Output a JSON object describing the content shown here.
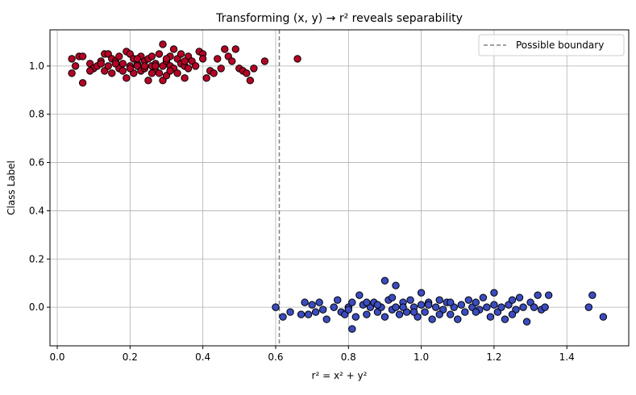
{
  "chart_data": {
    "type": "scatter",
    "title": "Transforming (x, y) → r² reveals separability",
    "xlabel": "r² = x² + y²",
    "ylabel": "Class Label",
    "xlim": [
      -0.02,
      1.57
    ],
    "ylim": [
      -0.16,
      1.15
    ],
    "xticks": [
      0.0,
      0.2,
      0.4,
      0.6,
      0.8,
      1.0,
      1.2,
      1.4
    ],
    "xtick_labels": [
      "0.0",
      "0.2",
      "0.4",
      "0.6",
      "0.8",
      "1.0",
      "1.2",
      "1.4"
    ],
    "yticks": [
      0.0,
      0.2,
      0.4,
      0.6,
      0.8,
      1.0
    ],
    "ytick_labels": [
      "0.0",
      "0.2",
      "0.4",
      "0.6",
      "0.8",
      "1.0"
    ],
    "grid": true,
    "legend": {
      "position": "top-right",
      "entries": [
        "Possible boundary"
      ]
    },
    "boundary": {
      "x": 0.61,
      "style": "dashed",
      "color": "#808080"
    },
    "series": [
      {
        "color": "#b40426",
        "points": [
          [
            0.04,
            1.03
          ],
          [
            0.04,
            0.97
          ],
          [
            0.05,
            1.0
          ],
          [
            0.06,
            1.04
          ],
          [
            0.07,
            1.04
          ],
          [
            0.07,
            0.93
          ],
          [
            0.09,
            1.01
          ],
          [
            0.1,
            0.99
          ],
          [
            0.11,
            1.0
          ],
          [
            0.12,
            1.02
          ],
          [
            0.13,
            0.98
          ],
          [
            0.13,
            1.05
          ],
          [
            0.14,
            1.0
          ],
          [
            0.14,
            1.05
          ],
          [
            0.15,
            0.97
          ],
          [
            0.15,
            1.03
          ],
          [
            0.16,
            1.02
          ],
          [
            0.17,
            0.99
          ],
          [
            0.17,
            1.04
          ],
          [
            0.18,
            0.98
          ],
          [
            0.18,
            1.01
          ],
          [
            0.19,
            1.06
          ],
          [
            0.19,
            0.95
          ],
          [
            0.2,
            1.05
          ],
          [
            0.2,
            1.0
          ],
          [
            0.21,
            1.03
          ],
          [
            0.21,
            0.97
          ],
          [
            0.22,
            1.01
          ],
          [
            0.22,
            1.0
          ],
          [
            0.23,
            0.98
          ],
          [
            0.23,
            1.04
          ],
          [
            0.24,
            1.02
          ],
          [
            0.24,
            0.99
          ],
          [
            0.25,
            0.94
          ],
          [
            0.25,
            1.03
          ],
          [
            0.26,
            1.0
          ],
          [
            0.26,
            1.04
          ],
          [
            0.27,
            0.98
          ],
          [
            0.27,
            1.01
          ],
          [
            0.28,
            1.05
          ],
          [
            0.28,
            0.97
          ],
          [
            0.29,
            1.09
          ],
          [
            0.29,
            1.0
          ],
          [
            0.29,
            0.94
          ],
          [
            0.3,
            1.02
          ],
          [
            0.3,
            0.96
          ],
          [
            0.31,
            1.0
          ],
          [
            0.31,
            1.04
          ],
          [
            0.32,
            0.99
          ],
          [
            0.32,
            1.07
          ],
          [
            0.33,
            1.03
          ],
          [
            0.33,
            0.97
          ],
          [
            0.34,
            1.05
          ],
          [
            0.34,
            1.01
          ],
          [
            0.35,
            0.95
          ],
          [
            0.35,
            1.0
          ],
          [
            0.36,
            1.04
          ],
          [
            0.36,
            0.99
          ],
          [
            0.37,
            1.02
          ],
          [
            0.38,
            1.0
          ],
          [
            0.39,
            1.06
          ],
          [
            0.4,
            1.05
          ],
          [
            0.4,
            1.03
          ],
          [
            0.41,
            0.95
          ],
          [
            0.42,
            0.98
          ],
          [
            0.43,
            0.97
          ],
          [
            0.44,
            1.03
          ],
          [
            0.45,
            0.99
          ],
          [
            0.46,
            1.07
          ],
          [
            0.47,
            1.04
          ],
          [
            0.48,
            1.02
          ],
          [
            0.49,
            1.07
          ],
          [
            0.5,
            0.99
          ],
          [
            0.51,
            0.98
          ],
          [
            0.52,
            0.97
          ],
          [
            0.53,
            0.94
          ],
          [
            0.54,
            0.99
          ],
          [
            0.57,
            1.02
          ],
          [
            0.66,
            1.03
          ],
          [
            0.24,
            1.0
          ],
          [
            0.27,
            1.0
          ],
          [
            0.2,
            0.99
          ],
          [
            0.16,
            1.01
          ],
          [
            0.31,
            0.98
          ],
          [
            0.12,
            1.01
          ],
          [
            0.09,
            0.98
          ],
          [
            0.35,
            1.02
          ],
          [
            0.26,
            0.97
          ],
          [
            0.22,
            1.03
          ],
          [
            0.3,
            1.03
          ]
        ]
      },
      {
        "color": "#3b4cc0",
        "points": [
          [
            0.6,
            0.0
          ],
          [
            0.62,
            -0.04
          ],
          [
            0.64,
            -0.02
          ],
          [
            0.67,
            -0.03
          ],
          [
            0.68,
            0.02
          ],
          [
            0.69,
            -0.03
          ],
          [
            0.7,
            0.01
          ],
          [
            0.71,
            -0.02
          ],
          [
            0.72,
            0.02
          ],
          [
            0.73,
            -0.01
          ],
          [
            0.74,
            -0.05
          ],
          [
            0.76,
            0.0
          ],
          [
            0.77,
            0.03
          ],
          [
            0.78,
            -0.02
          ],
          [
            0.79,
            -0.03
          ],
          [
            0.8,
            0.0
          ],
          [
            0.81,
            -0.09
          ],
          [
            0.81,
            0.02
          ],
          [
            0.82,
            -0.04
          ],
          [
            0.83,
            0.05
          ],
          [
            0.84,
            0.01
          ],
          [
            0.85,
            -0.03
          ],
          [
            0.86,
            0.0
          ],
          [
            0.87,
            0.02
          ],
          [
            0.88,
            -0.02
          ],
          [
            0.89,
            0.0
          ],
          [
            0.9,
            0.11
          ],
          [
            0.9,
            -0.04
          ],
          [
            0.91,
            0.03
          ],
          [
            0.92,
            -0.01
          ],
          [
            0.93,
            0.09
          ],
          [
            0.93,
            0.0
          ],
          [
            0.94,
            -0.03
          ],
          [
            0.95,
            0.02
          ],
          [
            0.96,
            -0.02
          ],
          [
            0.97,
            0.03
          ],
          [
            0.98,
            0.0
          ],
          [
            0.99,
            -0.04
          ],
          [
            1.0,
            0.06
          ],
          [
            1.0,
            0.01
          ],
          [
            1.01,
            -0.02
          ],
          [
            1.02,
            0.02
          ],
          [
            1.03,
            -0.05
          ],
          [
            1.04,
            0.0
          ],
          [
            1.05,
            0.03
          ],
          [
            1.06,
            -0.01
          ],
          [
            1.07,
            0.02
          ],
          [
            1.08,
            -0.03
          ],
          [
            1.09,
            0.0
          ],
          [
            1.1,
            -0.05
          ],
          [
            1.11,
            0.01
          ],
          [
            1.12,
            -0.02
          ],
          [
            1.13,
            0.03
          ],
          [
            1.14,
            0.0
          ],
          [
            1.15,
            0.02
          ],
          [
            1.16,
            -0.01
          ],
          [
            1.17,
            0.04
          ],
          [
            1.18,
            0.0
          ],
          [
            1.19,
            -0.04
          ],
          [
            1.2,
            0.06
          ],
          [
            1.2,
            0.01
          ],
          [
            1.21,
            -0.02
          ],
          [
            1.22,
            0.0
          ],
          [
            1.23,
            -0.05
          ],
          [
            1.24,
            0.01
          ],
          [
            1.25,
            0.03
          ],
          [
            1.26,
            -0.01
          ],
          [
            1.27,
            0.04
          ],
          [
            1.28,
            0.0
          ],
          [
            1.29,
            -0.06
          ],
          [
            1.3,
            0.02
          ],
          [
            1.31,
            0.0
          ],
          [
            1.32,
            0.05
          ],
          [
            1.33,
            -0.01
          ],
          [
            1.34,
            0.0
          ],
          [
            1.35,
            0.05
          ],
          [
            1.46,
            0.0
          ],
          [
            1.47,
            0.05
          ],
          [
            1.5,
            -0.04
          ],
          [
            0.88,
            0.01
          ],
          [
            0.95,
            0.0
          ],
          [
            1.02,
            0.01
          ],
          [
            1.08,
            0.02
          ],
          [
            0.85,
            0.02
          ],
          [
            0.98,
            -0.02
          ],
          [
            1.05,
            -0.03
          ],
          [
            1.15,
            -0.02
          ],
          [
            0.92,
            0.04
          ],
          [
            0.8,
            -0.01
          ],
          [
            1.25,
            -0.03
          ]
        ]
      }
    ]
  }
}
